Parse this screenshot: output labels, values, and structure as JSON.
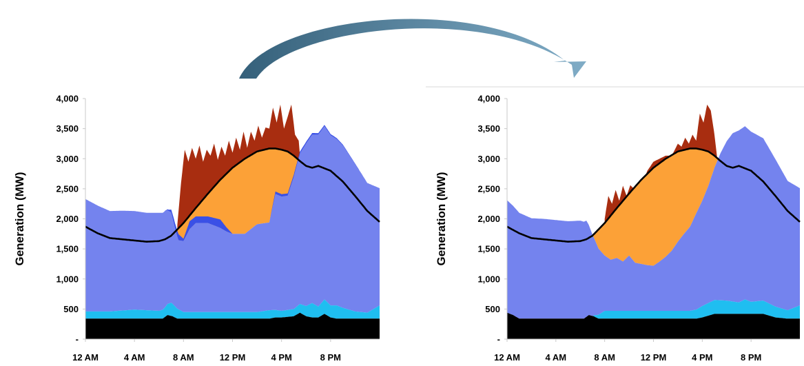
{
  "colors": {
    "curtailment": "#a82d10",
    "solar": "#fca137",
    "other": "#7483ee",
    "dispatch": "#3a50e6",
    "imports": "#1fbef0",
    "baseload": "#000000",
    "load": "#000000",
    "arrow_dark": "#35607a",
    "arrow_light": "#80acc6"
  },
  "chart_data": [
    {
      "type": "area",
      "ylabel": "Generation (MW)",
      "ylim": [
        0,
        4000
      ],
      "yticks": [
        0,
        500,
        1000,
        1500,
        2000,
        2500,
        3000,
        3500,
        4000
      ],
      "ytick_labels": [
        "-",
        "500",
        "1,000",
        "1,500",
        "2,000",
        "2,500",
        "3,000",
        "3,500",
        "4,000"
      ],
      "xlim": [
        0,
        24
      ],
      "xticks": [
        0,
        4,
        8,
        12,
        16,
        20
      ],
      "xtick_labels": [
        "12 AM",
        "4 AM",
        "8 AM",
        "12 PM",
        "4 PM",
        "8 PM"
      ],
      "series": [
        {
          "key": "baseload",
          "x": [
            0,
            6.3,
            6.7,
            7.1,
            7.5,
            9,
            11,
            12,
            14,
            15,
            15.5,
            16,
            17,
            17.5,
            18,
            18.5,
            19,
            19.5,
            20,
            20.5,
            21,
            22,
            23,
            24
          ],
          "values": [
            340,
            340,
            400,
            380,
            340,
            340,
            340,
            340,
            340,
            340,
            360,
            360,
            380,
            440,
            380,
            360,
            360,
            420,
            360,
            340,
            340,
            340,
            340,
            340
          ]
        },
        {
          "key": "imports",
          "x": [
            0,
            2,
            4,
            6,
            6.5,
            7,
            8,
            12,
            14,
            15,
            16,
            17,
            18,
            18.5,
            19,
            19.5,
            20,
            20.5,
            21,
            22,
            23,
            24
          ],
          "values": [
            120,
            120,
            150,
            130,
            160,
            220,
            110,
            110,
            110,
            140,
            110,
            120,
            170,
            240,
            180,
            240,
            200,
            220,
            180,
            120,
            100,
            220
          ]
        },
        {
          "key": "other",
          "x": [
            0,
            1,
            2,
            3,
            4,
            5,
            6,
            6.5,
            7,
            7.3,
            7.6,
            8,
            8.5,
            9,
            10,
            11,
            11.5,
            12,
            13,
            14,
            15,
            15.5,
            16,
            16.5,
            17,
            17.5,
            18,
            18.5,
            19,
            19.5,
            20,
            21,
            22,
            23,
            24
          ],
          "values": [
            1870,
            1760,
            1670,
            1660,
            1640,
            1620,
            1630,
            1600,
            1500,
            1300,
            1150,
            1180,
            1380,
            1480,
            1480,
            1400,
            1340,
            1300,
            1300,
            1460,
            1460,
            1930,
            1900,
            1900,
            2200,
            2500,
            2700,
            2800,
            2860,
            2880,
            2830,
            2700,
            2450,
            2150,
            1950
          ]
        },
        {
          "key": "dispatch",
          "x": [
            0,
            6.4,
            6.8,
            7.2,
            7.6,
            8,
            8.5,
            9,
            10,
            11,
            12,
            13,
            14,
            15,
            15.5,
            16,
            24
          ],
          "values": [
            0,
            0,
            20,
            80,
            100,
            40,
            130,
            110,
            110,
            140,
            0,
            0,
            0,
            0,
            40,
            40,
            0
          ]
        },
        {
          "key": "load",
          "x": [
            0,
            1,
            2,
            3,
            4,
            5,
            6,
            6.5,
            7,
            8,
            9,
            10,
            11,
            12,
            13,
            14,
            15,
            15.5,
            16,
            16.5,
            17,
            17.5,
            18,
            18.5,
            19,
            20,
            21,
            22,
            23,
            24
          ],
          "values": [
            1870,
            1760,
            1680,
            1660,
            1640,
            1620,
            1630,
            1660,
            1720,
            1930,
            2180,
            2420,
            2650,
            2850,
            3000,
            3120,
            3170,
            3170,
            3150,
            3120,
            3050,
            2960,
            2880,
            2850,
            2880,
            2800,
            2620,
            2380,
            2130,
            1950
          ]
        },
        {
          "key": "curtailment_top",
          "x": [
            7.5,
            7.8,
            8.1,
            8.4,
            8.7,
            9,
            9.3,
            9.6,
            9.9,
            10.2,
            10.5,
            10.8,
            11.1,
            11.4,
            11.7,
            12,
            12.3,
            12.6,
            12.9,
            13.2,
            13.5,
            13.8,
            14.1,
            14.4,
            14.7,
            15,
            15.3,
            15.6,
            15.9,
            16.2,
            16.5,
            16.8,
            17.1,
            17.4,
            17.5
          ],
          "values": [
            1900,
            2600,
            3150,
            2950,
            3180,
            3000,
            3220,
            2950,
            3150,
            3050,
            3250,
            2980,
            3200,
            3050,
            3300,
            3100,
            3350,
            3150,
            3450,
            3180,
            3450,
            3300,
            3550,
            3350,
            3520,
            3500,
            3850,
            3600,
            3900,
            3500,
            3700,
            3900,
            3400,
            3300,
            3050
          ]
        }
      ]
    },
    {
      "type": "area",
      "ylabel": "Generation (MW)",
      "ylim": [
        0,
        4000
      ],
      "yticks": [
        0,
        500,
        1000,
        1500,
        2000,
        2500,
        3000,
        3500,
        4000
      ],
      "ytick_labels": [
        "-",
        "500",
        "1,000",
        "1,500",
        "2,000",
        "2,500",
        "3,000",
        "3,500",
        "4,000"
      ],
      "xlim": [
        0,
        24
      ],
      "xticks": [
        0,
        4,
        8,
        12,
        16,
        20
      ],
      "xtick_labels": [
        "12 AM",
        "4 AM",
        "8 AM",
        "12 PM",
        "4 PM",
        "8 PM"
      ],
      "series": [
        {
          "key": "baseload",
          "x": [
            0,
            0.5,
            1,
            6.3,
            6.7,
            7.1,
            7.5,
            9,
            11,
            12,
            14,
            15,
            15.5,
            16,
            17,
            18,
            19,
            20,
            21,
            22,
            23,
            24
          ],
          "values": [
            440,
            400,
            340,
            340,
            400,
            380,
            340,
            340,
            340,
            340,
            340,
            340,
            340,
            360,
            420,
            420,
            420,
            420,
            420,
            360,
            340,
            340
          ]
        },
        {
          "key": "imports",
          "x": [
            0,
            1,
            6,
            6.5,
            7,
            8,
            12,
            14,
            15,
            15.5,
            16,
            17,
            18,
            19,
            19.5,
            20,
            21,
            22,
            23,
            24
          ],
          "values": [
            0,
            0,
            0,
            0,
            0,
            130,
            130,
            130,
            130,
            150,
            190,
            230,
            220,
            190,
            240,
            200,
            220,
            180,
            140,
            220
          ]
        },
        {
          "key": "other",
          "x": [
            0,
            1,
            2,
            3,
            4,
            5,
            6,
            6.5,
            7,
            7.5,
            8,
            8.5,
            9,
            9.5,
            10,
            10.5,
            11,
            11.5,
            12,
            12.5,
            13,
            13.5,
            14,
            14.5,
            15,
            15.5,
            16,
            16.5,
            17,
            17.5,
            18,
            18.5,
            19,
            19.5,
            20,
            21,
            22,
            23,
            24
          ],
          "values": [
            1870,
            1760,
            1670,
            1660,
            1640,
            1620,
            1630,
            1600,
            1350,
            1100,
            920,
            850,
            880,
            820,
            920,
            800,
            780,
            760,
            750,
            820,
            900,
            1000,
            1150,
            1280,
            1400,
            1600,
            1750,
            1950,
            2200,
            2450,
            2650,
            2800,
            2860,
            2880,
            2830,
            2700,
            2450,
            2150,
            1950
          ]
        },
        {
          "key": "load",
          "x": [
            0,
            1,
            2,
            3,
            4,
            5,
            6,
            6.5,
            7,
            8,
            9,
            10,
            11,
            12,
            13,
            14,
            15,
            15.5,
            16,
            16.5,
            17,
            17.5,
            18,
            18.5,
            19,
            20,
            21,
            22,
            23,
            24
          ],
          "values": [
            1870,
            1760,
            1680,
            1660,
            1640,
            1620,
            1630,
            1660,
            1720,
            1930,
            2180,
            2420,
            2650,
            2850,
            3000,
            3120,
            3170,
            3170,
            3150,
            3120,
            3050,
            2960,
            2880,
            2850,
            2880,
            2800,
            2620,
            2380,
            2130,
            1950
          ]
        },
        {
          "key": "curtailment_top",
          "x": [
            8,
            8.3,
            8.6,
            8.9,
            9.2,
            9.5,
            9.8,
            10.1,
            10.4,
            10.7,
            11,
            11.5,
            12,
            12.5,
            13,
            13.5,
            14,
            14.3,
            14.6,
            14.9,
            15.2,
            15.5,
            15.8,
            16.1,
            16.4,
            16.7,
            17,
            17.2
          ],
          "values": [
            2000,
            2380,
            2250,
            2480,
            2300,
            2550,
            2380,
            2560,
            2500,
            2600,
            2550,
            2800,
            2950,
            3000,
            3050,
            3050,
            3250,
            3200,
            3350,
            3250,
            3400,
            3300,
            3750,
            3600,
            3900,
            3800,
            3400,
            3050
          ]
        }
      ]
    }
  ]
}
